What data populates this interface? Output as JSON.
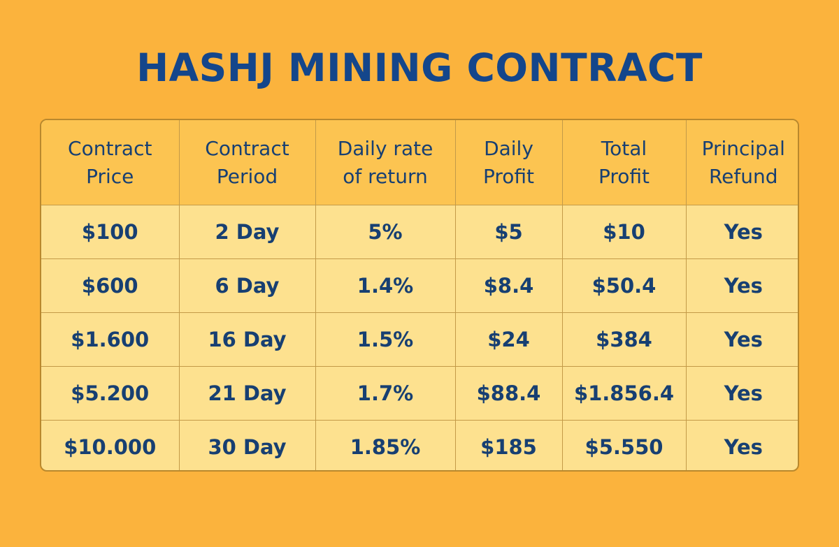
{
  "title": "HASHJ MINING CONTRACT",
  "colors": {
    "background": "#fbb33d",
    "header_fill": "#fcc451",
    "cell_fill": "#fde18f",
    "text": "#173f72"
  },
  "table": {
    "headers": [
      "Contract\nPrice",
      "Contract\nPeriod",
      "Daily rate\nof return",
      "Daily\nProfit",
      "Total\nProfit",
      "Principal\nRefund"
    ],
    "rows": [
      [
        "$100",
        "2 Day",
        "5%",
        "$5",
        "$10",
        "Yes"
      ],
      [
        "$600",
        "6 Day",
        "1.4%",
        "$8.4",
        "$50.4",
        "Yes"
      ],
      [
        "$1.600",
        "16 Day",
        "1.5%",
        "$24",
        "$384",
        "Yes"
      ],
      [
        "$5.200",
        "21 Day",
        "1.7%",
        "$88.4",
        "$1.856.4",
        "Yes"
      ],
      [
        "$10.000",
        "30 Day",
        "1.85%",
        "$185",
        "$5.550",
        "Yes"
      ]
    ]
  }
}
